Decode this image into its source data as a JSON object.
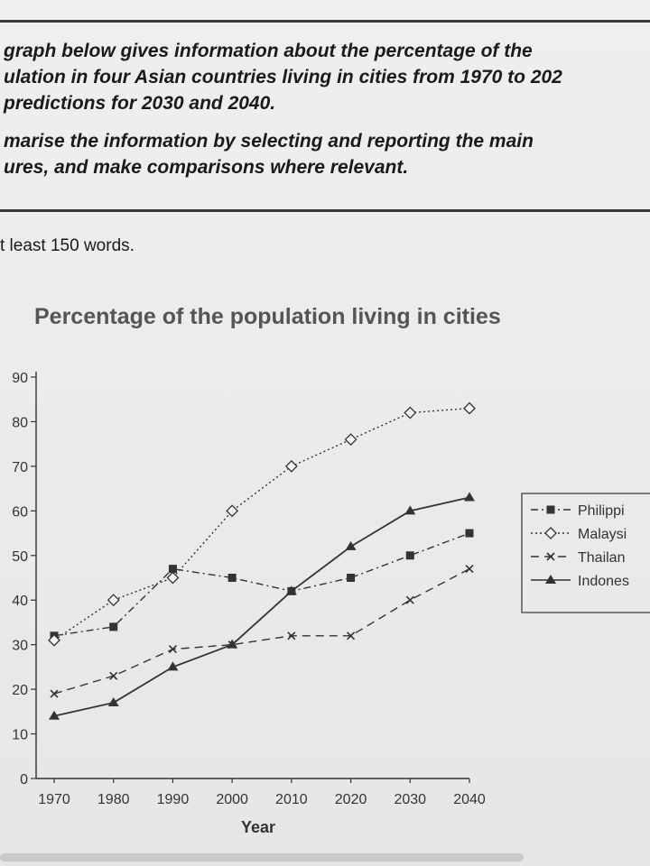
{
  "task": {
    "lines1": [
      "graph below gives information about the percentage of the",
      "ulation in four Asian countries living in cities from 1970 to 202",
      "predictions for 2030 and 2040."
    ],
    "lines2": [
      "marise the information by selecting and reporting the main",
      "ures, and make comparisons where relevant."
    ],
    "word_count": "t least 150 words."
  },
  "chart_data": {
    "type": "line",
    "title": "Percentage of the population living in cities",
    "xlabel": "Year",
    "ylabel": "",
    "x": [
      1970,
      1980,
      1990,
      2000,
      2010,
      2020,
      2030,
      2040
    ],
    "xlim": [
      1970,
      2040
    ],
    "ylim": [
      0,
      90
    ],
    "yticks": [
      0,
      10,
      20,
      30,
      40,
      50,
      60,
      70,
      80,
      90
    ],
    "grid": false,
    "legend_position": "right",
    "series": [
      {
        "name": "Philippi",
        "marker": "square",
        "style": "dash-dot",
        "values": [
          32,
          34,
          47,
          45,
          42,
          45,
          50,
          55
        ]
      },
      {
        "name": "Malaysi",
        "marker": "diamond",
        "style": "dotted",
        "values": [
          31,
          40,
          45,
          60,
          70,
          76,
          82,
          83
        ]
      },
      {
        "name": "Thailan",
        "marker": "cross",
        "style": "dashed",
        "values": [
          19,
          23,
          29,
          30,
          32,
          32,
          40,
          47
        ]
      },
      {
        "name": "Indones",
        "marker": "triangle",
        "style": "solid",
        "values": [
          14,
          17,
          25,
          30,
          42,
          52,
          60,
          63
        ]
      }
    ]
  },
  "colors": {
    "line": "#333333",
    "text": "#1d1d1f"
  }
}
